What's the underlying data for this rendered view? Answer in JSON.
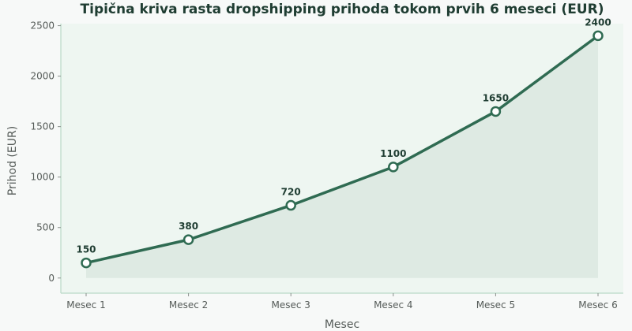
{
  "chart_data": {
    "type": "area",
    "title": "Tipična kriva rasta dropshipping prihoda tokom prvih 6 meseci (EUR)",
    "xlabel": "Mesec",
    "ylabel": "Prihod (EUR)",
    "categories": [
      "Mesec 1",
      "Mesec 2",
      "Mesec 3",
      "Mesec 4",
      "Mesec 5",
      "Mesec 6"
    ],
    "values": [
      150,
      380,
      720,
      1100,
      1650,
      2400
    ],
    "data_labels": [
      "150",
      "380",
      "720",
      "1100",
      "1650",
      "2400"
    ],
    "ylim": [
      -150,
      2520
    ],
    "yticks": [
      0,
      500,
      1000,
      1500,
      2000,
      2500
    ],
    "ytick_labels": [
      "0",
      "500",
      "1000",
      "1500",
      "2000",
      "2500"
    ],
    "grid": false,
    "colors": {
      "line": "#2f6b52",
      "fill": "#dbe9e1",
      "plot_bg": "#eef6f1",
      "axis": "#b8d9c6",
      "marker_fill": "#ffffff"
    }
  }
}
